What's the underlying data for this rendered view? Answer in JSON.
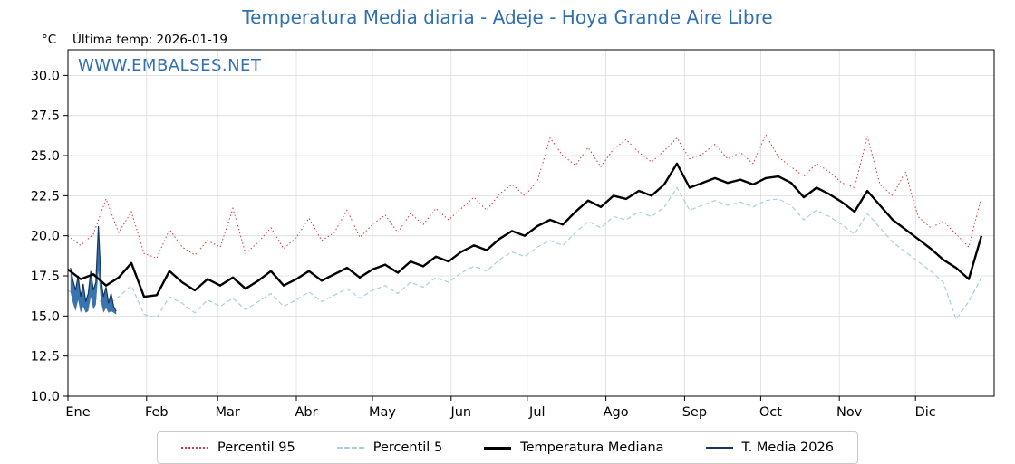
{
  "header": {
    "title": "Temperatura Media diaria - Adeje - Hoya Grande Aire Libre",
    "unit_label": "°C",
    "last_temp_label": "Última temp: 2026-01-19"
  },
  "watermark": "WWW.EMBALSES.NET",
  "colors": {
    "title": "#3070b3",
    "watermark": "#3070b3",
    "grid": "#dcdcdc",
    "axis": "#000000",
    "percentil95": "#cc3b3b",
    "percentil5": "#a7cfe0",
    "mediana": "#000000",
    "media2026_line": "#16365c",
    "media2026_fill": "#3a74ae"
  },
  "chart_data": {
    "type": "line",
    "title": "Temperatura Media diaria - Adeje - Hoya Grande Aire Libre",
    "xlabel": "",
    "ylabel": "°C",
    "ylim": [
      10,
      31.6
    ],
    "grid": true,
    "legend_position": "bottom",
    "y_ticks": [
      10,
      12.5,
      15,
      17.5,
      20,
      22.5,
      25,
      27.5,
      30
    ],
    "x_months": [
      "Ene",
      "Feb",
      "Mar",
      "Abr",
      "May",
      "Jun",
      "Jul",
      "Ago",
      "Sep",
      "Oct",
      "Nov",
      "Dic"
    ],
    "month_start_days": [
      0,
      31,
      59,
      90,
      120,
      151,
      181,
      212,
      243,
      273,
      304,
      334
    ],
    "x_step_days": 5,
    "series": [
      {
        "name": "Percentil 95",
        "color": "#cc3b3b",
        "style": "dotted",
        "values": [
          20.0,
          19.4,
          20.1,
          22.3,
          20.2,
          21.5,
          18.9,
          18.6,
          20.4,
          19.3,
          18.8,
          19.7,
          19.3,
          21.7,
          18.9,
          19.6,
          20.5,
          19.2,
          19.9,
          21.1,
          19.7,
          20.2,
          21.6,
          19.9,
          20.7,
          21.3,
          20.2,
          21.4,
          20.7,
          21.7,
          21.0,
          21.7,
          22.4,
          21.6,
          22.6,
          23.2,
          22.5,
          23.4,
          26.1,
          25.0,
          24.4,
          25.5,
          24.3,
          25.4,
          26.0,
          25.2,
          24.6,
          25.3,
          26.1,
          24.8,
          25.1,
          25.7,
          24.8,
          25.2,
          24.5,
          26.3,
          24.9,
          24.3,
          23.7,
          24.5,
          24.0,
          23.3,
          23.0,
          26.2,
          23.2,
          22.5,
          24.0,
          21.2,
          20.5,
          20.9,
          20.1,
          19.3,
          22.4
        ]
      },
      {
        "name": "Percentil 5",
        "color": "#a7cfe0",
        "style": "dashed",
        "values": [
          16.6,
          16.1,
          16.3,
          15.6,
          16.2,
          16.9,
          15.1,
          14.9,
          16.2,
          15.8,
          15.2,
          16.0,
          15.6,
          16.1,
          15.4,
          15.9,
          16.4,
          15.6,
          16.0,
          16.5,
          15.9,
          16.3,
          16.7,
          16.1,
          16.6,
          16.9,
          16.4,
          17.1,
          16.8,
          17.4,
          17.1,
          17.7,
          18.1,
          17.8,
          18.5,
          19.0,
          18.7,
          19.3,
          19.7,
          19.4,
          20.2,
          20.9,
          20.5,
          21.2,
          21.0,
          21.5,
          21.2,
          21.8,
          23.0,
          21.6,
          21.9,
          22.2,
          21.9,
          22.1,
          21.8,
          22.2,
          22.3,
          21.9,
          21.0,
          21.6,
          21.2,
          20.7,
          20.1,
          21.4,
          20.5,
          19.6,
          19.0,
          18.4,
          17.8,
          17.1,
          14.8,
          15.9,
          17.4
        ]
      },
      {
        "name": "T. Media 2026",
        "color": "#16365c",
        "fill": "#3a74ae",
        "style": "solid-thin",
        "start_day": 1,
        "step_days": 1,
        "values": [
          18.0,
          17.2,
          16.6,
          17.5,
          16.2,
          17.0,
          15.9,
          16.4,
          17.8,
          16.6,
          17.1,
          20.6,
          17.3,
          16.2,
          16.8,
          15.8,
          16.4,
          15.6,
          15.3
        ],
        "fill_low": [
          16.5,
          15.8,
          15.3,
          16.0,
          15.2,
          15.6,
          15.2,
          15.3,
          16.2,
          15.4,
          15.7,
          17.8,
          15.9,
          15.2,
          15.5,
          15.2,
          15.3,
          15.2,
          15.1
        ]
      },
      {
        "name": "Temperatura Mediana",
        "color": "#000000",
        "style": "solid-thick",
        "values": [
          17.9,
          17.3,
          17.6,
          16.9,
          17.4,
          18.3,
          16.2,
          16.3,
          17.8,
          17.1,
          16.6,
          17.3,
          16.9,
          17.4,
          16.7,
          17.2,
          17.8,
          16.9,
          17.3,
          17.8,
          17.2,
          17.6,
          18.0,
          17.4,
          17.9,
          18.2,
          17.7,
          18.4,
          18.1,
          18.7,
          18.4,
          19.0,
          19.4,
          19.1,
          19.8,
          20.3,
          20.0,
          20.6,
          21.0,
          20.7,
          21.5,
          22.2,
          21.8,
          22.5,
          22.3,
          22.8,
          22.5,
          23.2,
          24.5,
          23.0,
          23.3,
          23.6,
          23.3,
          23.5,
          23.2,
          23.6,
          23.7,
          23.3,
          22.4,
          23.0,
          22.6,
          22.1,
          21.5,
          22.8,
          21.9,
          21.0,
          20.4,
          19.8,
          19.2,
          18.5,
          18.0,
          17.3,
          20.0
        ]
      }
    ],
    "legend_order": [
      "Percentil 95",
      "Percentil 5",
      "Temperatura Mediana",
      "T. Media 2026"
    ]
  }
}
